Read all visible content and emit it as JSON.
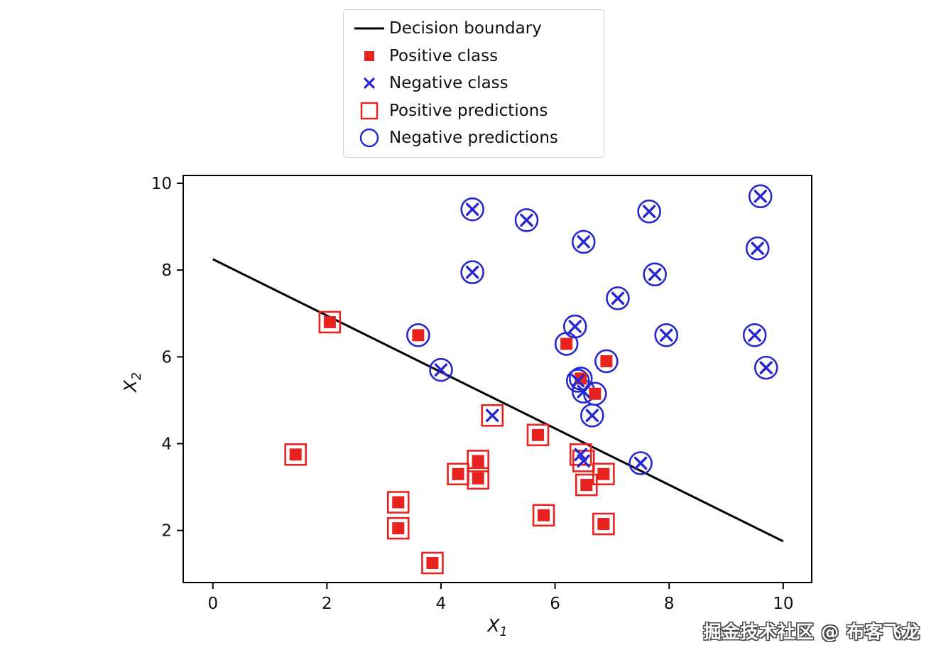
{
  "watermark": "掘金技术社区 @ 布客飞龙",
  "chart_data": {
    "type": "scatter",
    "title": "",
    "xlabel": {
      "base": "X",
      "sub": "1"
    },
    "ylabel": {
      "base": "X",
      "sub": "2"
    },
    "xlim": [
      -0.52,
      10.5
    ],
    "ylim": [
      0.8,
      10.18
    ],
    "xticks": [
      0,
      2,
      4,
      6,
      8,
      10
    ],
    "yticks": [
      2,
      4,
      6,
      8,
      10
    ],
    "grid": false,
    "legend_position": "above-plot",
    "colors": {
      "positive": "#e8231f",
      "negative": "#2727cf",
      "boundary": "#000000"
    },
    "decision_boundary": {
      "x0": 0,
      "y0": 8.25,
      "x1": 10,
      "y1": 1.75
    },
    "legend": [
      {
        "label": "Decision boundary",
        "marker": "line",
        "color": "#000000"
      },
      {
        "label": "Positive class",
        "marker": "filled-square",
        "color": "#e8231f"
      },
      {
        "label": "Negative class",
        "marker": "x",
        "color": "#2727cf"
      },
      {
        "label": "Positive predictions",
        "marker": "open-square",
        "color": "#e8231f"
      },
      {
        "label": "Negative predictions",
        "marker": "open-circle",
        "color": "#2727cf"
      }
    ],
    "points": [
      {
        "x": 2.05,
        "y": 6.8,
        "cls": "positive",
        "pred": "positive"
      },
      {
        "x": 3.6,
        "y": 6.5,
        "cls": "positive",
        "pred": "negative"
      },
      {
        "x": 6.2,
        "y": 6.3,
        "cls": "positive",
        "pred": "negative"
      },
      {
        "x": 6.9,
        "y": 5.9,
        "cls": "positive",
        "pred": "negative"
      },
      {
        "x": 6.45,
        "y": 5.5,
        "cls": "positive",
        "pred": "negative"
      },
      {
        "x": 6.7,
        "y": 5.15,
        "cls": "positive",
        "pred": "negative"
      },
      {
        "x": 5.7,
        "y": 4.2,
        "cls": "positive",
        "pred": "positive"
      },
      {
        "x": 1.45,
        "y": 3.75,
        "cls": "positive",
        "pred": "positive"
      },
      {
        "x": 4.3,
        "y": 3.3,
        "cls": "positive",
        "pred": "positive"
      },
      {
        "x": 4.65,
        "y": 3.6,
        "cls": "positive",
        "pred": "positive"
      },
      {
        "x": 4.65,
        "y": 3.2,
        "cls": "positive",
        "pred": "positive"
      },
      {
        "x": 6.55,
        "y": 3.05,
        "cls": "positive",
        "pred": "positive"
      },
      {
        "x": 6.85,
        "y": 3.3,
        "cls": "positive",
        "pred": "positive"
      },
      {
        "x": 3.25,
        "y": 2.65,
        "cls": "positive",
        "pred": "positive"
      },
      {
        "x": 3.25,
        "y": 2.05,
        "cls": "positive",
        "pred": "positive"
      },
      {
        "x": 5.8,
        "y": 2.35,
        "cls": "positive",
        "pred": "positive"
      },
      {
        "x": 6.85,
        "y": 2.15,
        "cls": "positive",
        "pred": "positive"
      },
      {
        "x": 3.85,
        "y": 1.25,
        "cls": "positive",
        "pred": "positive"
      },
      {
        "x": 4.55,
        "y": 9.4,
        "cls": "negative",
        "pred": "negative"
      },
      {
        "x": 5.5,
        "y": 9.15,
        "cls": "negative",
        "pred": "negative"
      },
      {
        "x": 7.65,
        "y": 9.35,
        "cls": "negative",
        "pred": "negative"
      },
      {
        "x": 9.6,
        "y": 9.7,
        "cls": "negative",
        "pred": "negative"
      },
      {
        "x": 6.5,
        "y": 8.65,
        "cls": "negative",
        "pred": "negative"
      },
      {
        "x": 9.55,
        "y": 8.5,
        "cls": "negative",
        "pred": "negative"
      },
      {
        "x": 4.55,
        "y": 7.95,
        "cls": "negative",
        "pred": "negative"
      },
      {
        "x": 7.75,
        "y": 7.9,
        "cls": "negative",
        "pred": "negative"
      },
      {
        "x": 7.1,
        "y": 7.35,
        "cls": "negative",
        "pred": "negative"
      },
      {
        "x": 6.35,
        "y": 6.7,
        "cls": "negative",
        "pred": "negative"
      },
      {
        "x": 7.95,
        "y": 6.5,
        "cls": "negative",
        "pred": "negative"
      },
      {
        "x": 9.5,
        "y": 6.5,
        "cls": "negative",
        "pred": "negative"
      },
      {
        "x": 9.7,
        "y": 5.75,
        "cls": "negative",
        "pred": "negative"
      },
      {
        "x": 4.0,
        "y": 5.7,
        "cls": "negative",
        "pred": "negative"
      },
      {
        "x": 6.4,
        "y": 5.45,
        "cls": "negative",
        "pred": "negative"
      },
      {
        "x": 6.5,
        "y": 5.2,
        "cls": "negative",
        "pred": "negative"
      },
      {
        "x": 6.65,
        "y": 4.65,
        "cls": "negative",
        "pred": "negative"
      },
      {
        "x": 7.5,
        "y": 3.55,
        "cls": "negative",
        "pred": "negative"
      },
      {
        "x": 4.9,
        "y": 4.65,
        "cls": "negative",
        "pred": "positive"
      },
      {
        "x": 6.45,
        "y": 3.75,
        "cls": "negative",
        "pred": "positive"
      },
      {
        "x": 6.5,
        "y": 3.6,
        "cls": "negative",
        "pred": "positive"
      }
    ]
  }
}
